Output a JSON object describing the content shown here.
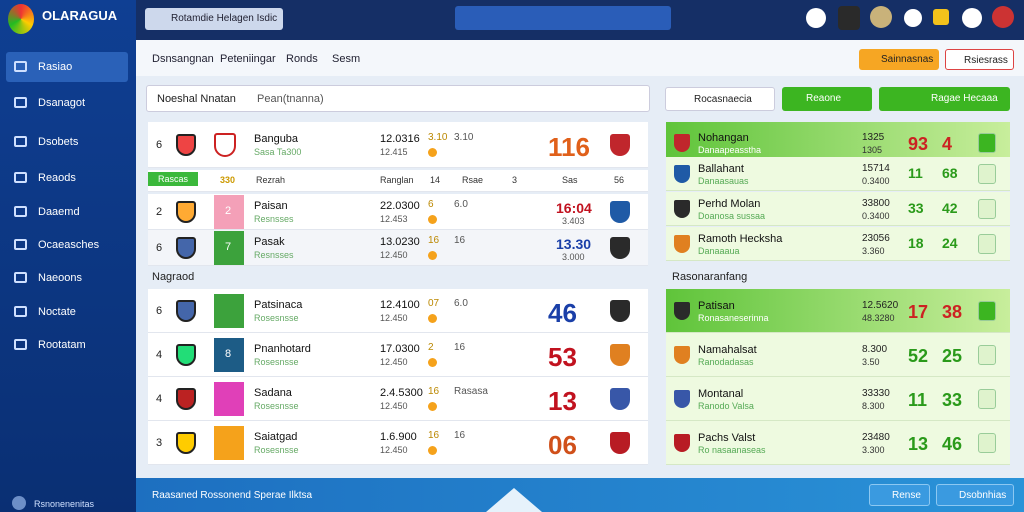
{
  "header": {
    "logo_title": "OLARAGUA",
    "search_left": "Rotamdie Helagen Isdic"
  },
  "sidebar": {
    "items": [
      "Rasiao",
      "Dsanagot",
      "Dsobets",
      "Reaods",
      "Daaemd",
      "Ocaeasches",
      "Naeoons",
      "Noctate",
      "Rootatam"
    ],
    "footer": "Rsnonenenitas"
  },
  "tabs": [
    "Dsnsangnan",
    "Peteniingar",
    "Ronds",
    "Sesm"
  ],
  "top_buttons": [
    "Sainnasnas",
    "Rsiesrass"
  ],
  "left_panel": {
    "search": "Noeshal Nnatan",
    "filter": "Pean(tnanna)",
    "top_rows": [
      {
        "rank": "6",
        "name": "Banguba",
        "sub": "Sasa Ta300",
        "score": "12.0316",
        "score_sub": "12.415",
        "odds_a": "3.10",
        "odds_b": "3.10",
        "result": "116"
      }
    ],
    "header_row": [
      "Rascas",
      "330",
      "Rezrah",
      "Ranglan",
      "14",
      "Rsae",
      "3",
      "Sas",
      "56"
    ],
    "mid_rows": [
      {
        "rank": "2",
        "badge": "2",
        "name": "Paisan",
        "sub": "Resnsses",
        "score": "22.0300",
        "score_sub": "12.453",
        "odds_a": "6",
        "odds_b": "6.0",
        "result": "16:04",
        "result_sub": "3.403"
      },
      {
        "rank": "6",
        "badge": "7",
        "name": "Pasak",
        "sub": "Resnsses",
        "score": "13.0230",
        "score_sub": "12.450",
        "odds_a": "16",
        "odds_b": "16",
        "result": "13.30",
        "result_sub": "3.000"
      }
    ],
    "section": "Nagraod",
    "bottom_rows": [
      {
        "rank": "6",
        "badge": "",
        "name": "Patsinaca",
        "sub": "Rosesnsse",
        "score": "12.4100",
        "score_sub": "12.450",
        "odds_a": "07",
        "odds_b": "6.0",
        "result": "46"
      },
      {
        "rank": "4",
        "badge": "8",
        "name": "Pnanhotard",
        "sub": "Rosesnsse",
        "score": "17.0300",
        "score_sub": "12.450",
        "odds_a": "2",
        "odds_b": "16",
        "result": "53"
      },
      {
        "rank": "4",
        "badge": "",
        "name": "Sadana",
        "sub": "Rosesnsse",
        "score": "2.4.5300",
        "score_sub": "12.450",
        "odds_a": "16",
        "odds_b": "Rasasa",
        "result": "13"
      },
      {
        "rank": "3",
        "badge": "",
        "name": "Saiatgad",
        "sub": "Rosesnsse",
        "score": "1.6.900",
        "score_sub": "12.450",
        "odds_a": "16",
        "odds_b": "16",
        "result": "06"
      }
    ]
  },
  "right_panel": {
    "dropdown": "Rocasnaecia",
    "button_a": "Reaone",
    "button_b": "Ragae Hecaaa",
    "top_rows": [
      {
        "name": "Nohangan",
        "sub": "Danaapeasstha",
        "odds": "1325",
        "odds_sub": "1305",
        "a": "93",
        "b": "4"
      },
      {
        "name": "Ballahant",
        "sub": "Danaasauas",
        "odds": "15714",
        "odds_sub": "0.3400",
        "a": "11",
        "b": "68"
      },
      {
        "name": "Perhd Molan",
        "sub": "Doanosa sussaa",
        "odds": "33800",
        "odds_sub": "0.3400",
        "a": "33",
        "b": "42"
      },
      {
        "name": "Ramoth Hecksha",
        "sub": "Danaaaua",
        "odds": "23056",
        "odds_sub": "3.360",
        "a": "18",
        "b": "24"
      }
    ],
    "section": "Rasonaranfang",
    "bottom_rows": [
      {
        "name": "Patisan",
        "sub": "Ronasaneserinna",
        "odds": "12.5620",
        "odds_sub": "48.3280",
        "a": "17",
        "b": "38"
      },
      {
        "name": "Namahalsat",
        "sub": "Ranodadasas",
        "odds": "8.300",
        "odds_sub": "3.50",
        "a": "52",
        "b": "25"
      },
      {
        "name": "Montanal",
        "sub": "Ranodo Valsa",
        "odds": "33330",
        "odds_sub": "8.300",
        "a": "11",
        "b": "33"
      },
      {
        "name": "Pachs Valst",
        "sub": "Ro nasaanaseas",
        "odds": "23480",
        "odds_sub": "3.300",
        "a": "13",
        "b": "46"
      }
    ]
  },
  "footer": {
    "text": "Raasaned Rossonend Sperae Ilktsa",
    "buttons": [
      "Rense",
      "Dsobnhias"
    ]
  }
}
